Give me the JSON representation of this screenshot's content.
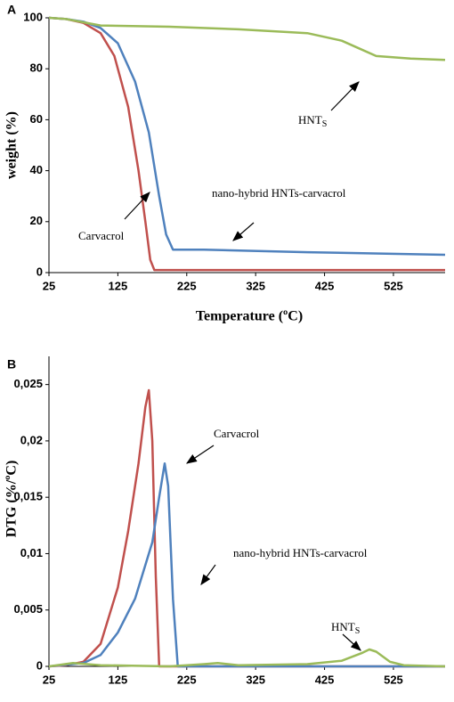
{
  "chart_data": [
    {
      "type": "line",
      "panel_label": "A",
      "y_label": "weight (%)",
      "x_label": "Temperature (ºC)",
      "xlim": [
        25,
        600
      ],
      "xticks": [
        25,
        125,
        225,
        325,
        425,
        525
      ],
      "ylim": [
        0,
        100
      ],
      "yticks": [
        0,
        20,
        40,
        60,
        80,
        100
      ],
      "series": [
        {
          "color": "#c0504d",
          "x": [
            25,
            50,
            75,
            100,
            120,
            140,
            155,
            165,
            172,
            178,
            200,
            600
          ],
          "values": [
            100,
            99.5,
            98,
            94,
            85,
            65,
            40,
            20,
            5,
            1,
            1,
            1
          ]
        },
        {
          "color": "#4f81bd",
          "x": [
            25,
            50,
            75,
            100,
            125,
            150,
            170,
            185,
            195,
            205,
            250,
            400,
            600
          ],
          "values": [
            100,
            99.5,
            98.5,
            96,
            90,
            75,
            55,
            30,
            15,
            9,
            9,
            8,
            7
          ]
        },
        {
          "color": "#9bbb59",
          "x": [
            25,
            50,
            100,
            200,
            300,
            400,
            450,
            475,
            500,
            550,
            600
          ],
          "values": [
            100,
            99.5,
            97,
            96.5,
            95.5,
            94,
            91,
            88,
            85,
            84,
            83.5
          ]
        }
      ],
      "annotations": [
        {
          "text": "HNT",
          "subscript": "S"
        },
        {
          "text": "nano-hybrid HNTs-carvacrol"
        },
        {
          "text": "Carvacrol"
        }
      ]
    },
    {
      "type": "line",
      "panel_label": "B",
      "y_label": "DTG (%/ºC)",
      "xlim": [
        25,
        600
      ],
      "xticks": [
        25,
        125,
        225,
        325,
        425,
        525
      ],
      "ylim": [
        0,
        0.0275
      ],
      "yticks": [
        0,
        {
          "value": 0.005,
          "label": "0,005"
        },
        {
          "value": 0.01,
          "label": "0,01"
        },
        {
          "value": 0.015,
          "label": "0,015"
        },
        {
          "value": 0.02,
          "label": "0,02"
        },
        {
          "value": 0.025,
          "label": "0,025"
        }
      ],
      "series": [
        {
          "color": "#c0504d",
          "x": [
            25,
            50,
            75,
            100,
            125,
            140,
            155,
            165,
            170,
            175,
            180,
            185,
            600
          ],
          "values": [
            0,
            0.0001,
            0.0004,
            0.002,
            0.007,
            0.012,
            0.018,
            0.023,
            0.0245,
            0.02,
            0.008,
            0,
            0
          ]
        },
        {
          "color": "#4f81bd",
          "x": [
            25,
            75,
            100,
            125,
            150,
            175,
            185,
            193,
            198,
            205,
            212,
            600
          ],
          "values": [
            0,
            0.0003,
            0.001,
            0.003,
            0.006,
            0.011,
            0.015,
            0.018,
            0.016,
            0.006,
            0,
            0
          ]
        },
        {
          "color": "#9bbb59",
          "x": [
            25,
            60,
            100,
            200,
            250,
            270,
            300,
            400,
            450,
            480,
            490,
            500,
            520,
            540,
            600
          ],
          "values": [
            0,
            0.0003,
            0.0001,
            0,
            0.0002,
            0.0003,
            0.0001,
            0.0002,
            0.0005,
            0.0012,
            0.0015,
            0.0013,
            0.0004,
            0.0001,
            0
          ]
        }
      ],
      "annotations": [
        {
          "text": "Carvacrol"
        },
        {
          "text": "nano-hybrid HNTs-carvacrol"
        },
        {
          "text": "HNT",
          "subscript": "S"
        }
      ]
    }
  ]
}
